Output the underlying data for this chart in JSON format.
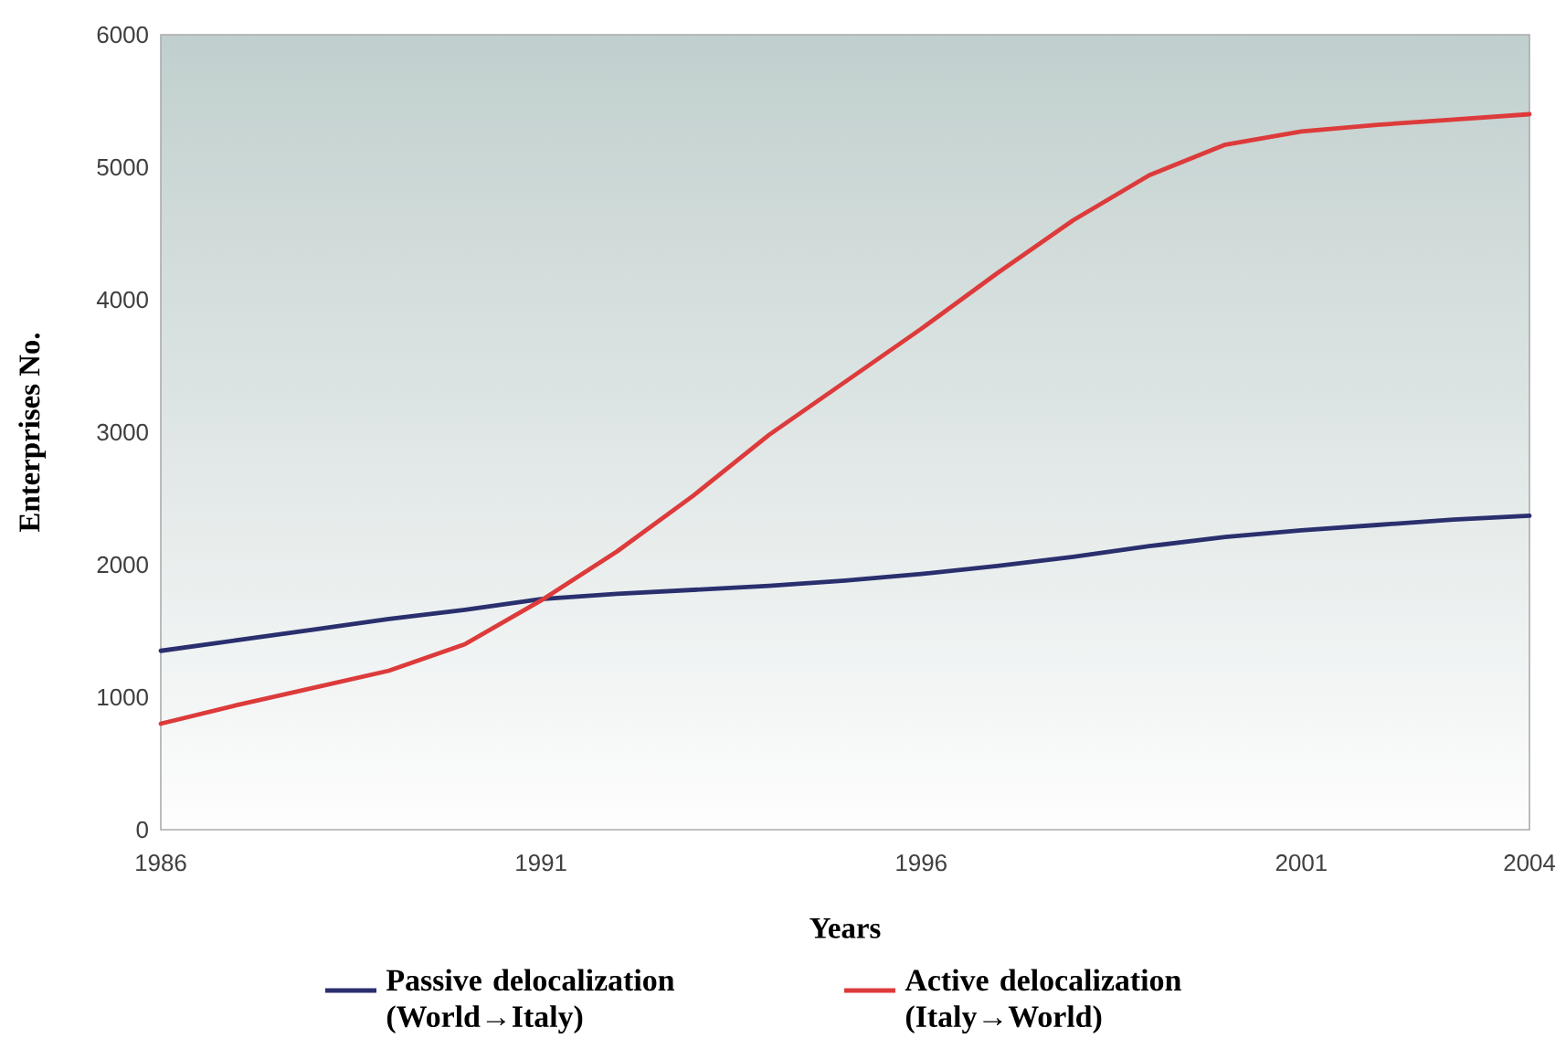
{
  "chart_data": {
    "type": "line",
    "xlabel": "Years",
    "ylabel": "Enterprises No.",
    "x": [
      1986,
      1987,
      1988,
      1989,
      1990,
      1991,
      1992,
      1993,
      1994,
      1995,
      1996,
      1997,
      1998,
      1999,
      2000,
      2001,
      2002,
      2003,
      2004
    ],
    "xlim": [
      1986,
      2004
    ],
    "xticks": [
      1986,
      1991,
      1996,
      2001,
      2004
    ],
    "ylim": [
      0,
      6000
    ],
    "yticks": [
      0,
      1000,
      2000,
      3000,
      4000,
      5000,
      6000
    ],
    "legend": "bottom",
    "line_style": "solid",
    "series": [
      {
        "name": "Passive delocalization (World→Italy)",
        "color": "#2a2f6e",
        "values": [
          1350,
          1430,
          1510,
          1590,
          1660,
          1740,
          1780,
          1810,
          1840,
          1880,
          1930,
          1990,
          2060,
          2140,
          2210,
          2260,
          2300,
          2340,
          2370
        ]
      },
      {
        "name": "Active delocalization (Italy→World)",
        "color": "#dd3b3b",
        "values": [
          800,
          940,
          1070,
          1200,
          1400,
          1730,
          2100,
          2520,
          2980,
          3380,
          3780,
          4200,
          4600,
          4940,
          5170,
          5270,
          5320,
          5360,
          5400
        ]
      }
    ]
  }
}
